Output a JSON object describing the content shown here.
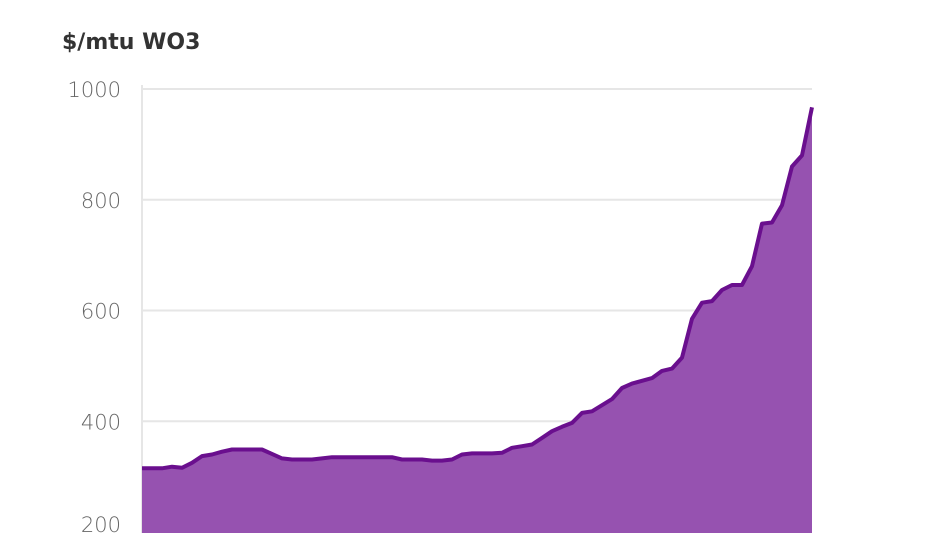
{
  "chart_data": {
    "type": "area",
    "title": "$/mtu WO3",
    "xlabel": "",
    "ylabel": "",
    "ylim": [
      200,
      1000
    ],
    "yticks": [
      200,
      400,
      600,
      800,
      1000
    ],
    "grid": true,
    "colors": {
      "line": "#6a0f8e",
      "fill": "#9652b0",
      "grid": "#e6e6e6"
    },
    "values": [
      315,
      315,
      315,
      318,
      316,
      325,
      337,
      340,
      345,
      349,
      349,
      349,
      349,
      341,
      333,
      331,
      331,
      331,
      333,
      335,
      335,
      335,
      335,
      335,
      335,
      335,
      331,
      331,
      331,
      329,
      329,
      331,
      340,
      342,
      342,
      342,
      343,
      352,
      355,
      358,
      370,
      382,
      390,
      397,
      415,
      418,
      429,
      440,
      460,
      468,
      473,
      478,
      491,
      495,
      515,
      585,
      614,
      617,
      637,
      646,
      646,
      680,
      757,
      759,
      790,
      860,
      880,
      967
    ]
  }
}
